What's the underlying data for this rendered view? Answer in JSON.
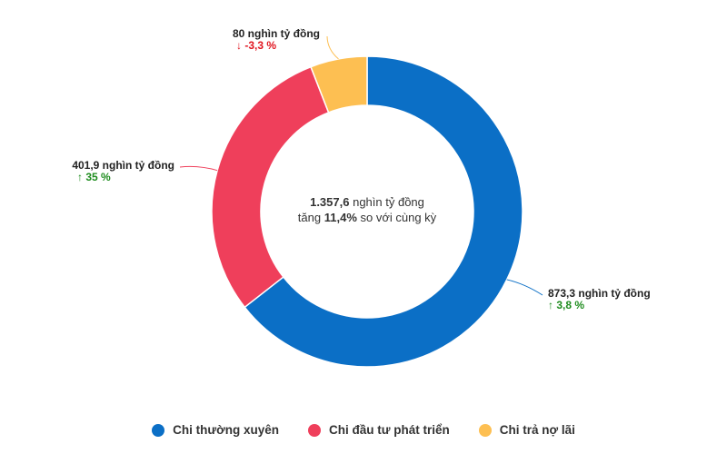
{
  "chart_data": {
    "type": "pie",
    "style": "donut",
    "legend_position": "bottom",
    "center": {
      "total": "1.357,6",
      "unit": "nghìn tỷ đồng",
      "change_prefix": "tăng",
      "change_value": "11,4%",
      "change_suffix": "so với cùng kỳ"
    },
    "series": [
      {
        "name": "Chi thường xuyên",
        "value": 873.3,
        "label": "873,3 nghìn tỷ đồng",
        "change": "↑ 3,8 %",
        "trend": "up",
        "color": "#0b6fc6"
      },
      {
        "name": "Chi đầu tư phát triển",
        "value": 401.9,
        "label": "401,9 nghìn tỷ đồng",
        "change": "↑ 35 %",
        "trend": "up",
        "color": "#ef3f5b"
      },
      {
        "name": "Chi trả nợ lãi",
        "value": 80,
        "label": "80 nghìn tỷ đồng",
        "change": "↓ -3,3 %",
        "trend": "down",
        "color": "#fdbf52"
      }
    ],
    "trend_colors": {
      "up": "#1e8c1e",
      "down": "#e0141e"
    }
  }
}
